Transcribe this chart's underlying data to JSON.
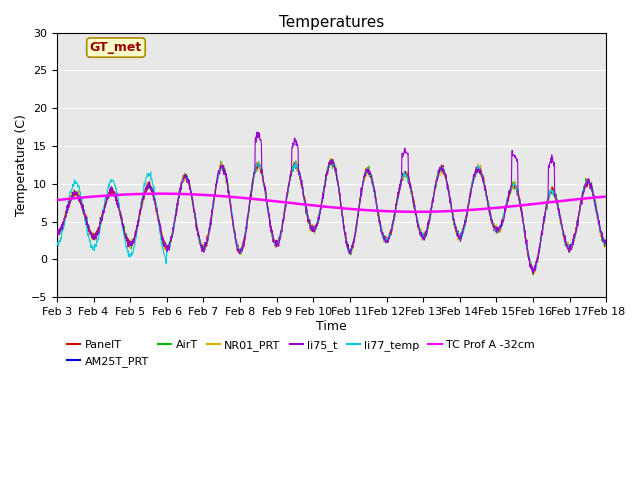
{
  "title": "Temperatures",
  "xlabel": "Time",
  "ylabel": "Temperature (C)",
  "ylim": [
    -5,
    30
  ],
  "xlim": [
    0,
    15
  ],
  "xtick_labels": [
    "Feb 3",
    "Feb 4",
    "Feb 5",
    "Feb 6",
    "Feb 7",
    "Feb 8",
    "Feb 9",
    "Feb 10",
    "Feb 11",
    "Feb 12",
    "Feb 13",
    "Feb 14",
    "Feb 15",
    "Feb 16",
    "Feb 17",
    "Feb 18"
  ],
  "series_colors": {
    "PanelT": "#dd0000",
    "AM25T_PRT": "#0000dd",
    "AirT": "#00bb00",
    "NR01_PRT": "#ddaa00",
    "li75_t": "#9900cc",
    "li77_temp": "#00ccdd",
    "TC Prof A -32cm": "#ff00ff"
  },
  "annotation_text": "GT_met",
  "annotation_bg": "#ffffcc",
  "annotation_border": "#aa8800",
  "annotation_text_color": "#990000",
  "bg_color": "#e8e8e8",
  "title_fontsize": 11,
  "axis_label_fontsize": 9,
  "tick_fontsize": 8
}
